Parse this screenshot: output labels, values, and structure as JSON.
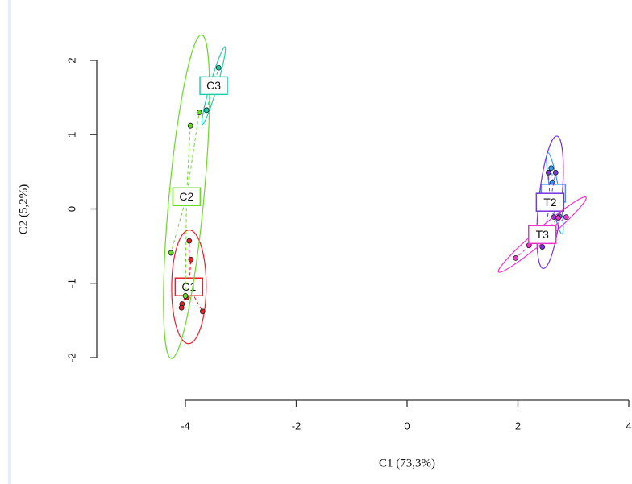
{
  "chart_data": {
    "type": "scatter",
    "xlabel": "C1 (73,3%)",
    "ylabel": "C2 (5,2%)",
    "xlim": [
      -4,
      4
    ],
    "ylim": [
      -2,
      2
    ],
    "xticks": [
      -4,
      -2,
      0,
      2,
      4
    ],
    "yticks": [
      -2,
      -1,
      0,
      1,
      2
    ],
    "series": [
      {
        "name": "C1",
        "color": "#e8202a",
        "x": [
          -3.93,
          -3.9,
          -4.06,
          -4.07,
          -3.69,
          -3.97
        ],
        "y": [
          -0.43,
          -0.68,
          -1.28,
          -1.33,
          -1.38,
          -1.19
        ]
      },
      {
        "name": "C2",
        "color": "#66dd22",
        "x": [
          -4.26,
          -3.91,
          -4.0,
          -3.75
        ],
        "y": [
          -0.59,
          1.12,
          -1.17,
          1.3
        ]
      },
      {
        "name": "C3",
        "color": "#22ccaa",
        "x": [
          -3.62,
          -3.4,
          -3.45
        ],
        "y": [
          1.33,
          1.9,
          1.75
        ]
      },
      {
        "color": "#3399ff",
        "x": [
          2.6,
          2.62,
          2.7,
          2.75
        ],
        "y": [
          0.55,
          0.35,
          0.05,
          -0.1
        ]
      },
      {
        "name": "T2",
        "color": "#7733dd",
        "x": [
          2.55,
          2.68,
          2.65,
          2.44
        ],
        "y": [
          0.49,
          0.49,
          -0.11,
          -0.51
        ]
      },
      {
        "name": "T3",
        "color": "#ee33cc",
        "x": [
          1.96,
          2.2,
          2.87,
          2.73
        ],
        "y": [
          -0.66,
          -0.49,
          -0.11,
          -0.12
        ]
      }
    ]
  }
}
